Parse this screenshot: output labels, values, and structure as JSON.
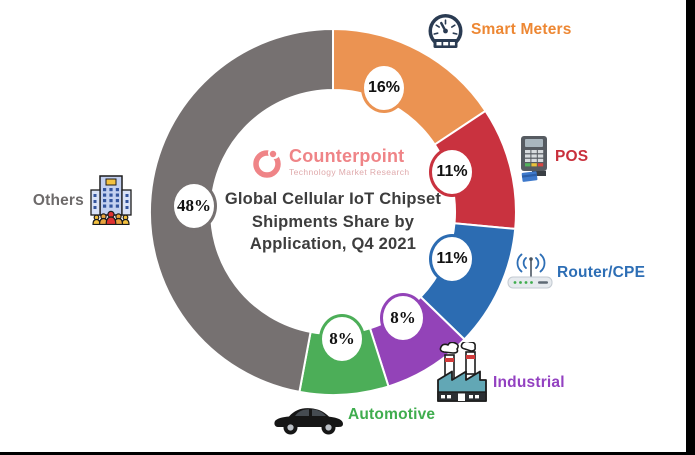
{
  "logo": {
    "name": "Counterpoint",
    "subtitle": "Technology Market Research",
    "brand_color": "#EF8487"
  },
  "title": {
    "text": "Global Cellular IoT Chipset Shipments Share by Application, Q4 2021",
    "lines": [
      "Global Cellular IoT Chipset",
      "Shipments Share by",
      "Application, Q4 2021"
    ],
    "color": "#3D3D3D"
  },
  "chart_data": {
    "type": "pie",
    "subtype": "donut",
    "title": "Global Cellular IoT Chipset Shipments Share by Application, Q4 2021",
    "unit": "%",
    "start_angle_deg": 0,
    "direction": "clockwise",
    "legend_position": "around",
    "segments": [
      {
        "label": "Smart Meters",
        "value": 16,
        "percent_label": "16%",
        "color": "#EB9352",
        "label_color": "#ED8733",
        "icon": "gauge-icon"
      },
      {
        "label": "POS",
        "value": 11,
        "percent_label": "11%",
        "color": "#C9323F",
        "label_color": "#C9303C",
        "icon": "pos-terminal-icon"
      },
      {
        "label": "Router/CPE",
        "value": 11,
        "percent_label": "11%",
        "color": "#2C6CB2",
        "label_color": "#2D6EB5",
        "icon": "router-icon"
      },
      {
        "label": "Industrial",
        "value": 8,
        "percent_label": "8%",
        "color": "#9343B8",
        "label_color": "#9341C1",
        "icon": "factory-icon"
      },
      {
        "label": "Automotive",
        "value": 8,
        "percent_label": "8%",
        "color": "#4CAE58",
        "label_color": "#3FAD4E",
        "icon": "car-icon"
      },
      {
        "label": "Others",
        "value": 48,
        "percent_label": "48%",
        "color": "#767171",
        "label_color": "#6D6A6A",
        "icon": "building-crowd-icon"
      }
    ]
  }
}
